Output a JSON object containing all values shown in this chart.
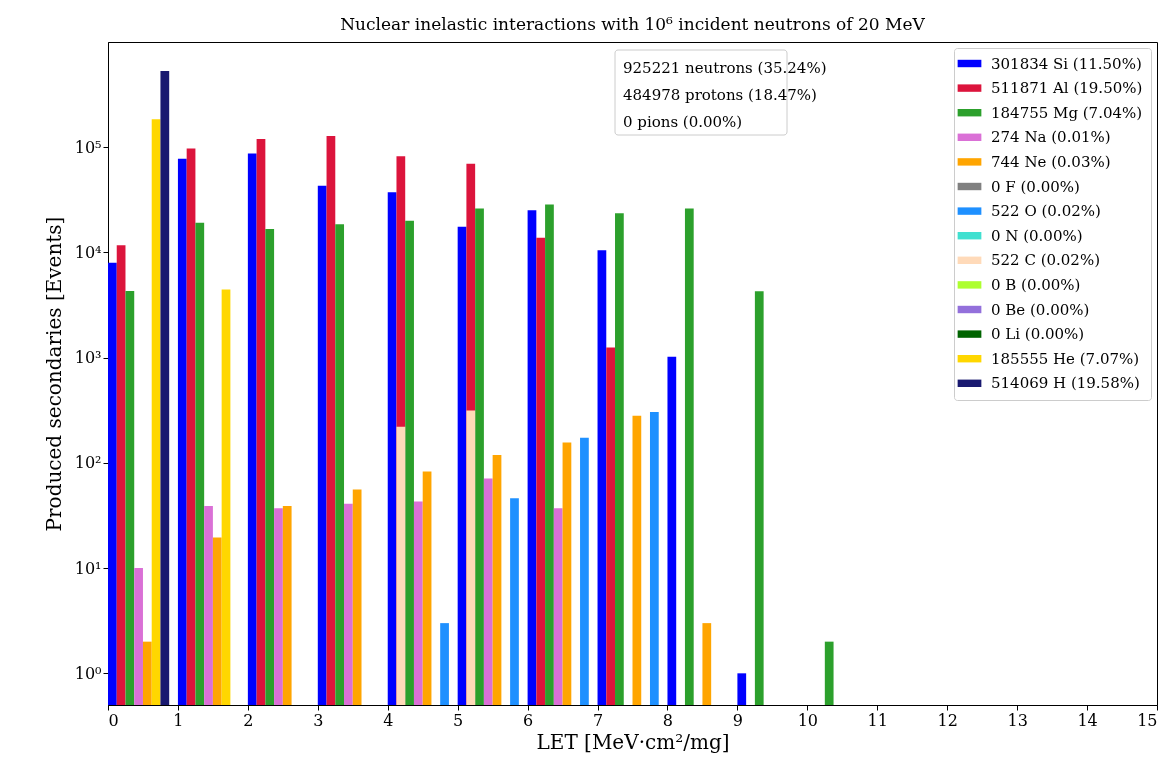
{
  "chart_data": {
    "type": "bar",
    "title": "Nuclear inelastic interactions with 10⁶ incident neutrons of 20 MeV",
    "xlabel": "LET [MeV·cm²/mg]",
    "ylabel": "Produced secondaries [Events]",
    "xlim": [
      0,
      15
    ],
    "xticks": [
      0,
      1,
      2,
      3,
      4,
      5,
      6,
      7,
      8,
      9,
      10,
      11,
      12,
      13,
      14,
      15
    ],
    "ylim": [
      0.5,
      1000000
    ],
    "yticks": [
      {
        "value": 1,
        "label": "10⁰"
      },
      {
        "value": 10,
        "label": "10¹"
      },
      {
        "value": 100,
        "label": "10²"
      },
      {
        "value": 1000,
        "label": "10³"
      },
      {
        "value": 10000,
        "label": "10⁴"
      },
      {
        "value": 100000,
        "label": "10⁵"
      }
    ],
    "log": true,
    "legend": "top right",
    "annotations": [
      "925221 neutrons (35.24%)",
      "484978 protons (18.47%)",
      "0 pions (0.00%)"
    ],
    "series": [
      {
        "name": "301834 Si (11.50%)",
        "color": "#0000ff",
        "x": [
          0.0625,
          1.0625,
          2.0625,
          3.0625,
          4.0625,
          5.0625,
          6.0625,
          7.0625,
          8.0625,
          9.0625
        ],
        "values": [
          8000,
          77500,
          87000,
          43000,
          37300,
          17500,
          25200,
          10500,
          1020,
          1
        ]
      },
      {
        "name": "511871 Al (19.50%)",
        "color": "#dc143c",
        "x": [
          0.1875,
          1.1875,
          2.1875,
          3.1875,
          4.1875,
          5.1875,
          6.1875,
          7.1875
        ],
        "values": [
          11700,
          97000,
          120000,
          128000,
          82000,
          69700,
          13800,
          1250
        ]
      },
      {
        "name": "184755 Mg (7.04%)",
        "color": "#2ca02c",
        "x": [
          0.3125,
          1.3125,
          2.3125,
          3.3125,
          4.3125,
          5.3125,
          6.3125,
          7.3125,
          8.3125,
          9.3125,
          10.3125
        ],
        "values": [
          4300,
          19100,
          16700,
          18500,
          20000,
          26200,
          28600,
          23600,
          26200,
          4270,
          2
        ]
      },
      {
        "name": "274 Na (0.01%)",
        "color": "#da70d6",
        "x": [
          0.4375,
          1.4375,
          2.4375,
          3.4375,
          4.4375,
          5.4375,
          6.4375
        ],
        "values": [
          10,
          39,
          37,
          41,
          43,
          71,
          37
        ]
      },
      {
        "name": "744 Ne (0.03%)",
        "color": "#ffa500",
        "x": [
          0.5625,
          1.5625,
          2.5625,
          3.5625,
          4.5625,
          5.5625,
          6.5625,
          7.5625,
          8.5625
        ],
        "values": [
          2,
          19.5,
          39,
          56,
          83,
          119,
          156,
          280,
          3
        ]
      },
      {
        "name": "0 F (0.00%)",
        "color": "#808080"
      },
      {
        "name": "522 O (0.02%)",
        "color": "#1e90ff",
        "x": [
          4.8125,
          5.8125,
          6.8125,
          7.8125
        ],
        "values": [
          3,
          46,
          173,
          305
        ]
      },
      {
        "name": "0 N (0.00%)",
        "color": "#40e0d0"
      },
      {
        "name": "522 C (0.02%)",
        "color": "#ffdab9",
        "x": [
          4.1875,
          5.1875
        ],
        "values": [
          220,
          314
        ]
      },
      {
        "name": "0 B (0.00%)",
        "color": "#adff2f"
      },
      {
        "name": "0 Be (0.00%)",
        "color": "#9370db"
      },
      {
        "name": "0 Li (0.00%)",
        "color": "#006400"
      },
      {
        "name": "185555 He (7.07%)",
        "color": "#ffd700",
        "x": [
          0.6875,
          1.6875
        ],
        "values": [
          184000,
          4440
        ]
      },
      {
        "name": "514069 H (19.58%)",
        "color": "#191970",
        "x": [
          0.8125
        ],
        "values": [
          530000
        ]
      }
    ]
  }
}
